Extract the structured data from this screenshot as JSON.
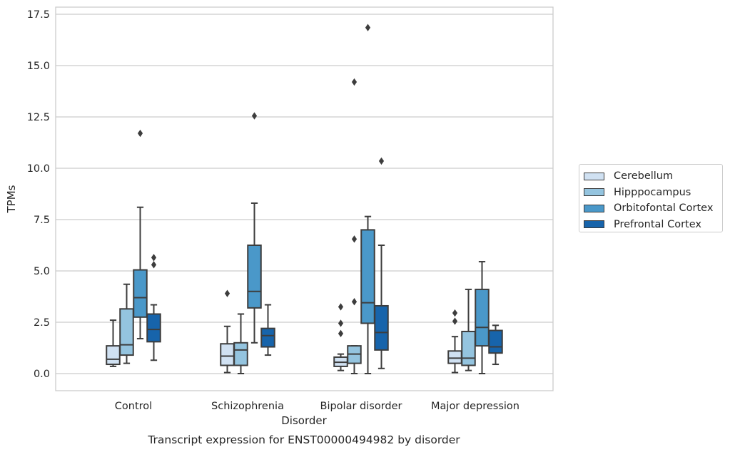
{
  "chart_data": {
    "type": "box",
    "title": "Transcript expression for ENST00000494982 by disorder",
    "xlabel": "Disorder",
    "ylabel": "TPMs",
    "ylim": [
      -0.8,
      17.7
    ],
    "yticks": [
      "0.0",
      "2.5",
      "5.0",
      "7.5",
      "10.0",
      "12.5",
      "15.0",
      "17.5"
    ],
    "categories": [
      "Control",
      "Schizophrenia",
      "Bipolar disorder",
      "Major depression"
    ],
    "grid": "horizontal",
    "legend_position": "right",
    "series": [
      {
        "name": "Cerebellum",
        "color": "#d0e1f2",
        "boxes": [
          {
            "whislo": 0.35,
            "q1": 0.45,
            "med": 0.7,
            "q3": 1.35,
            "whishi": 2.6,
            "fliers": []
          },
          {
            "whislo": 0.05,
            "q1": 0.4,
            "med": 0.85,
            "q3": 1.45,
            "whishi": 2.3,
            "fliers": [
              3.9
            ]
          },
          {
            "whislo": 0.15,
            "q1": 0.35,
            "med": 0.55,
            "q3": 0.8,
            "whishi": 0.95,
            "fliers": [
              1.95,
              2.45,
              3.25
            ]
          },
          {
            "whislo": 0.05,
            "q1": 0.5,
            "med": 0.75,
            "q3": 1.1,
            "whishi": 1.8,
            "fliers": [
              2.55,
              2.95
            ]
          }
        ]
      },
      {
        "name": "Hipppocampus",
        "color": "#94c4df",
        "boxes": [
          {
            "whislo": 0.5,
            "q1": 0.9,
            "med": 1.4,
            "q3": 3.15,
            "whishi": 4.35,
            "fliers": []
          },
          {
            "whislo": 0.0,
            "q1": 0.4,
            "med": 1.15,
            "q3": 1.5,
            "whishi": 2.9,
            "fliers": []
          },
          {
            "whislo": 0.0,
            "q1": 0.5,
            "med": 0.95,
            "q3": 1.35,
            "whishi": 1.35,
            "fliers": [
              3.5,
              6.55,
              14.2
            ]
          },
          {
            "whislo": 0.15,
            "q1": 0.4,
            "med": 0.75,
            "q3": 2.05,
            "whishi": 4.1,
            "fliers": []
          }
        ]
      },
      {
        "name": "Orbitofontal Cortex",
        "color": "#4a98c9",
        "boxes": [
          {
            "whislo": 1.7,
            "q1": 2.75,
            "med": 3.7,
            "q3": 5.05,
            "whishi": 8.1,
            "fliers": [
              11.7
            ]
          },
          {
            "whislo": 1.5,
            "q1": 3.2,
            "med": 4.0,
            "q3": 6.25,
            "whishi": 8.3,
            "fliers": [
              12.55
            ]
          },
          {
            "whislo": 0.0,
            "q1": 2.45,
            "med": 3.45,
            "q3": 7.0,
            "whishi": 7.65,
            "fliers": [
              16.85
            ]
          },
          {
            "whislo": 0.0,
            "q1": 1.35,
            "med": 2.25,
            "q3": 4.1,
            "whishi": 5.45,
            "fliers": []
          }
        ]
      },
      {
        "name": "Prefrontal Cortex",
        "color": "#1764ab",
        "boxes": [
          {
            "whislo": 0.65,
            "q1": 1.55,
            "med": 2.15,
            "q3": 2.9,
            "whishi": 3.35,
            "fliers": [
              5.3,
              5.65
            ]
          },
          {
            "whislo": 0.9,
            "q1": 1.3,
            "med": 1.85,
            "q3": 2.2,
            "whishi": 3.35,
            "fliers": []
          },
          {
            "whislo": 0.25,
            "q1": 1.15,
            "med": 2.0,
            "q3": 3.3,
            "whishi": 6.25,
            "fliers": [
              10.35
            ]
          },
          {
            "whislo": 0.45,
            "q1": 1.0,
            "med": 1.3,
            "q3": 2.1,
            "whishi": 2.35,
            "fliers": []
          }
        ]
      }
    ]
  }
}
